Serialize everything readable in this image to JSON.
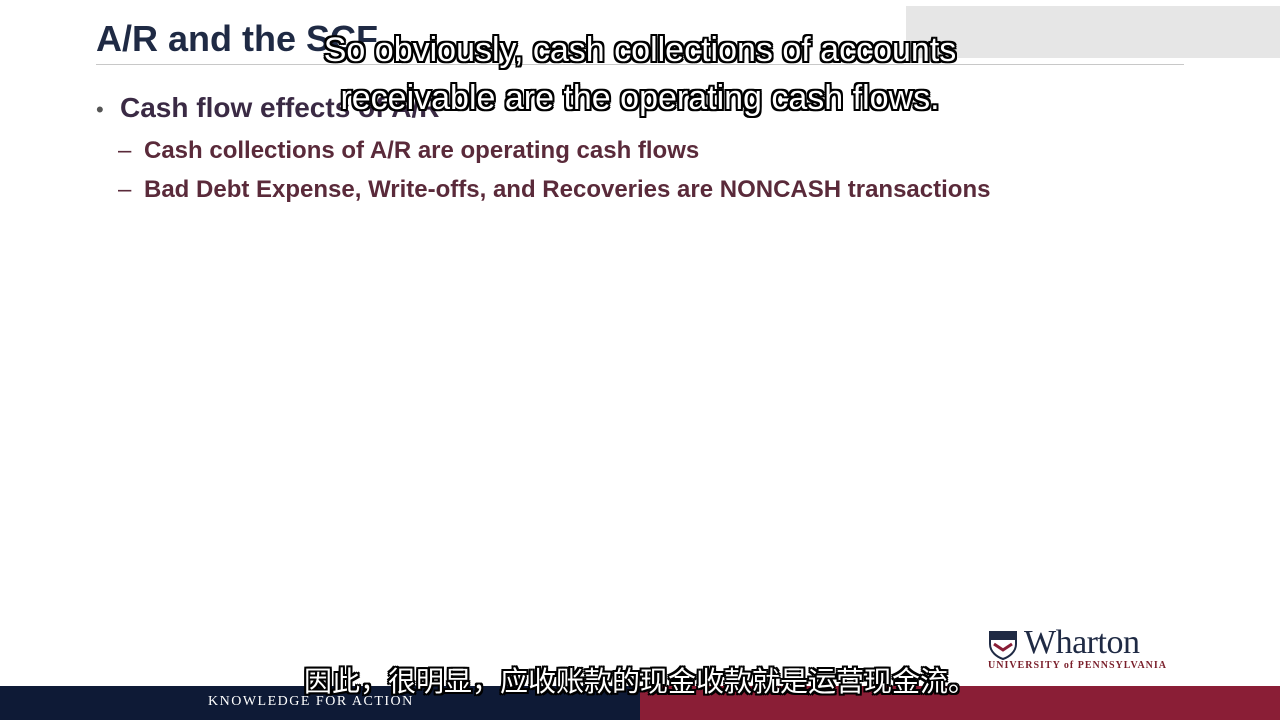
{
  "slide": {
    "title": "A/R and the SCF",
    "bullet": "Cash flow effects of A/R",
    "sub_items": [
      "Cash collections of A/R are operating cash flows",
      "Bad Debt Expense, Write-offs, and Recoveries are NONCASH transactions"
    ]
  },
  "captions": {
    "english_line1": "So obviously, cash collections of accounts",
    "english_line2": "receivable are the operating cash flows.",
    "chinese": "因此，很明显，应收账款的现金收款就是运营现金流。"
  },
  "logo": {
    "name": "Wharton",
    "subtitle": "UNIVERSITY of PENNSYLVANIA"
  },
  "footer": {
    "tagline": "KNOWLEDGE FOR ACTION"
  },
  "colors": {
    "footer_navy": "#0e1a36",
    "footer_red": "#8a1e36",
    "title": "#1f2a44"
  }
}
